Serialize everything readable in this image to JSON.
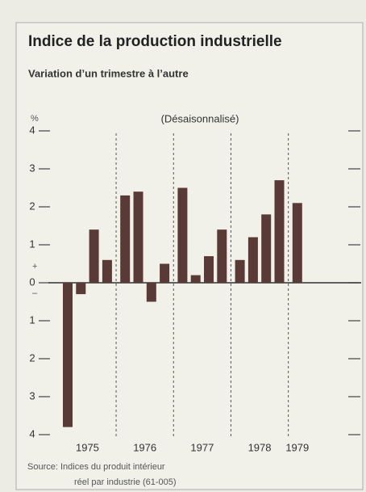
{
  "chart_data": {
    "type": "bar",
    "title": "Indice de la production industrielle",
    "subtitle": "Variation d’un trimestre à l’autre",
    "annotation": "(Désaisonnalisé)",
    "y_unit": "%",
    "sign_plus": "+",
    "sign_minus": "–",
    "categories": [
      null,
      null,
      null,
      null,
      null,
      null,
      null,
      null,
      null,
      null,
      null,
      null,
      null,
      null,
      null,
      null,
      null
    ],
    "year_labels": [
      "1975",
      "1976",
      "1977",
      "1978",
      "1979"
    ],
    "values": [
      -3.8,
      -0.3,
      1.4,
      0.6,
      2.3,
      2.4,
      -0.5,
      0.5,
      2.5,
      0.2,
      0.7,
      1.4,
      0.6,
      1.2,
      1.8,
      2.7,
      2.1
    ],
    "color": "#5a3a36",
    "ylim": [
      -4,
      4
    ],
    "yticks": [
      4,
      3,
      2,
      1,
      0,
      {
        "value": -1,
        "label": "1"
      },
      {
        "value": -2,
        "label": "2"
      },
      {
        "value": -3,
        "label": "3"
      },
      {
        "value": -4,
        "label": "4"
      }
    ],
    "source": [
      "Source: Indices du produit intérieur",
      "réel par industrie (61-005)"
    ]
  }
}
